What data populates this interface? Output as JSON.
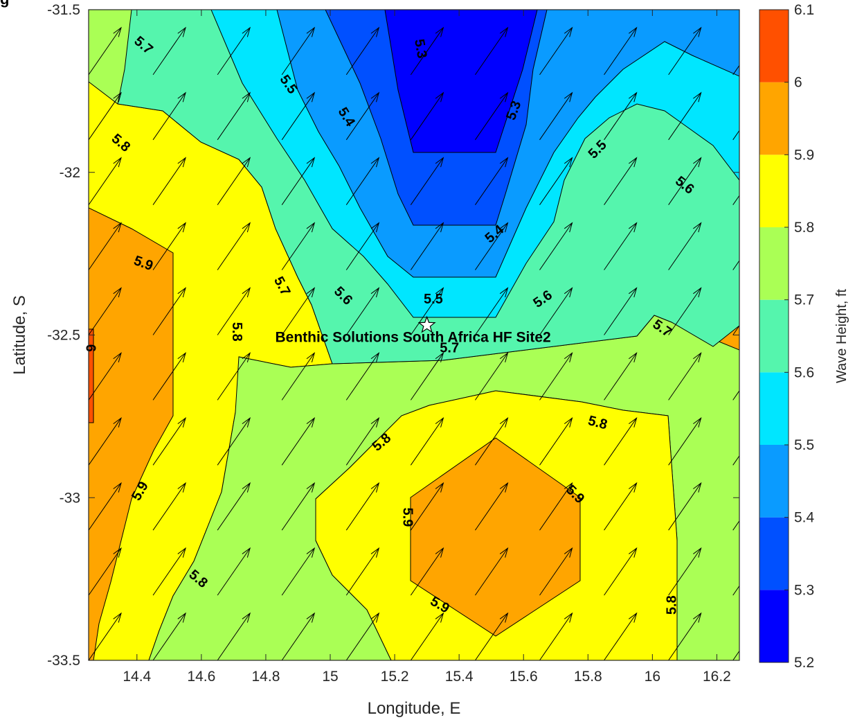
{
  "figure": {
    "clipped_title": "g",
    "colors": {
      "bands": [
        "#0000ff",
        "#0050ff",
        "#0a9bff",
        "#00e6ff",
        "#55f5ad",
        "#aaff55",
        "#ffff00",
        "#ffa500",
        "#ff5000"
      ],
      "arrow": "#000000",
      "contour_line": "#000000",
      "star_fill": "#ffffff"
    }
  },
  "chart_data": {
    "type": "heatmap",
    "subtype": "filled contour with vector arrows",
    "xlabel": "Longitude, E",
    "ylabel": "Latitude, S",
    "xlim": [
      14.25,
      16.27
    ],
    "ylim": [
      -33.5,
      -31.5
    ],
    "x_ticks": [
      14.4,
      14.6,
      14.8,
      15,
      15.2,
      15.4,
      15.6,
      15.8,
      16,
      16.2
    ],
    "x_tick_labels": [
      "14.4",
      "14.6",
      "14.8",
      "15",
      "15.2",
      "15.4",
      "15.6",
      "15.8",
      "16",
      "16.2"
    ],
    "y_ticks": [
      -31.5,
      -32,
      -32.5,
      -33,
      -33.5
    ],
    "y_tick_labels": [
      "-31.5",
      "-32",
      "-32.5",
      "-33",
      "-33.5"
    ],
    "colorbar": {
      "label": "Wave Height, ft",
      "levels": [
        5.2,
        5.3,
        5.4,
        5.5,
        5.6,
        5.7,
        5.8,
        5.9,
        6,
        6.1
      ],
      "tick_labels": [
        "5.2",
        "5.3",
        "5.4",
        "5.5",
        "5.6",
        "5.7",
        "5.8",
        "5.9",
        "6",
        "6.1"
      ]
    },
    "grid": false,
    "site": {
      "name": "Benthic Solutions South Africa HF Site2",
      "lon": 15.3,
      "lat": -32.47,
      "marker": "star"
    },
    "arrow_direction": "north-east",
    "arrow_grid": {
      "lons": [
        14.25,
        14.45,
        14.65,
        14.85,
        15.05,
        15.25,
        15.45,
        15.65,
        15.85,
        16.05,
        16.25
      ],
      "lats": [
        -33.5,
        -33.3,
        -33.1,
        -32.9,
        -32.7,
        -32.5,
        -32.3,
        -32.1,
        -31.9,
        -31.7
      ]
    },
    "contour_labels": [
      {
        "text": "5.7",
        "lon": 14.42,
        "lat": -31.61,
        "angle": 40
      },
      {
        "text": "5.8",
        "lon": 14.35,
        "lat": -31.91,
        "angle": 40
      },
      {
        "text": "5.5",
        "lon": 14.87,
        "lat": -31.73,
        "angle": 55
      },
      {
        "text": "5.4",
        "lon": 15.05,
        "lat": -31.83,
        "angle": 58
      },
      {
        "text": "5.3",
        "lon": 15.28,
        "lat": -31.62,
        "angle": 80
      },
      {
        "text": "5.3",
        "lon": 15.57,
        "lat": -31.81,
        "angle": -70
      },
      {
        "text": "5.5",
        "lon": 15.83,
        "lat": -31.93,
        "angle": -45
      },
      {
        "text": "5.6",
        "lon": 16.1,
        "lat": -32.04,
        "angle": 38
      },
      {
        "text": "5.9",
        "lon": 14.42,
        "lat": -32.28,
        "angle": 20
      },
      {
        "text": "5.7",
        "lon": 14.85,
        "lat": -32.35,
        "angle": 62
      },
      {
        "text": "5.6",
        "lon": 15.04,
        "lat": -32.38,
        "angle": 45
      },
      {
        "text": "5.4",
        "lon": 15.51,
        "lat": -32.19,
        "angle": -40
      },
      {
        "text": "5.5",
        "lon": 15.32,
        "lat": -32.39,
        "angle": 0
      },
      {
        "text": "5.6",
        "lon": 15.66,
        "lat": -32.39,
        "angle": -35
      },
      {
        "text": "5.7",
        "lon": 16.03,
        "lat": -32.48,
        "angle": 35
      },
      {
        "text": "5.8",
        "lon": 14.71,
        "lat": -32.49,
        "angle": 90
      },
      {
        "text": "6",
        "lon": 14.255,
        "lat": -32.54,
        "angle": 90
      },
      {
        "text": "5.7",
        "lon": 15.37,
        "lat": -32.54,
        "angle": 0
      },
      {
        "text": "5.8",
        "lon": 15.16,
        "lat": -32.83,
        "angle": -40
      },
      {
        "text": "5.8",
        "lon": 15.83,
        "lat": -32.77,
        "angle": 15
      },
      {
        "text": "5.9",
        "lon": 14.41,
        "lat": -32.98,
        "angle": -60
      },
      {
        "text": "5.9",
        "lon": 15.76,
        "lat": -32.99,
        "angle": 45
      },
      {
        "text": "5.9",
        "lon": 15.24,
        "lat": -33.06,
        "angle": 90
      },
      {
        "text": "5.8",
        "lon": 14.59,
        "lat": -33.25,
        "angle": 40
      },
      {
        "text": "5.9",
        "lon": 15.34,
        "lat": -33.33,
        "angle": 30
      },
      {
        "text": "5.8",
        "lon": 16.06,
        "lat": -33.33,
        "angle": -90
      }
    ]
  }
}
